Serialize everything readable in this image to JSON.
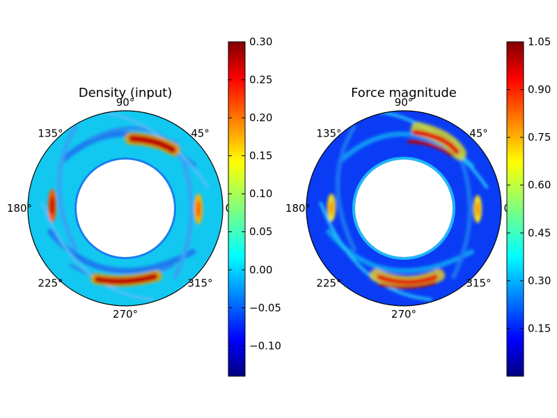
{
  "chart_data": [
    {
      "type": "heatmap",
      "title": "Density (input)",
      "projection": "polar",
      "angular_ticks": [
        "0°",
        "45°",
        "90°",
        "135°",
        "180°",
        "225°",
        "270°",
        "315°"
      ],
      "radial_range": [
        0.5,
        1.0
      ],
      "colormap": "jet",
      "colorbar": {
        "range": [
          -0.14,
          0.3
        ],
        "ticks": [
          -0.1,
          -0.05,
          0.0,
          0.05,
          0.1,
          0.15,
          0.2,
          0.25,
          0.3
        ],
        "tick_labels": [
          "−0.10",
          "−0.05",
          "0.00",
          "0.05",
          "0.10",
          "0.15",
          "0.20",
          "0.25",
          "0.30"
        ]
      },
      "features": [
        {
          "angle_deg": 62,
          "r": 0.84,
          "value": 0.29
        },
        {
          "angle_deg": 268,
          "r": 0.84,
          "value": 0.29
        },
        {
          "angle_deg": 180,
          "r": 0.94,
          "value": 0.22
        },
        {
          "angle_deg": 0,
          "r": 0.76,
          "value": 0.18
        }
      ]
    },
    {
      "type": "heatmap",
      "title": "Force magnitude",
      "projection": "polar",
      "angular_ticks": [
        "0°",
        "45°",
        "90°",
        "135°",
        "180°",
        "225°",
        "270°",
        "315°"
      ],
      "radial_range": [
        0.5,
        1.0
      ],
      "colormap": "jet",
      "colorbar": {
        "range": [
          0.0,
          1.05
        ],
        "ticks": [
          0.15,
          0.3,
          0.45,
          0.6,
          0.75,
          0.9,
          1.05
        ],
        "tick_labels": [
          "0.15",
          "0.30",
          "0.45",
          "0.60",
          "0.75",
          "0.90",
          "1.05"
        ]
      },
      "features": [
        {
          "angle_deg": 62,
          "r": 0.84,
          "value": 1.0
        },
        {
          "angle_deg": 268,
          "r": 0.84,
          "value": 1.0
        },
        {
          "angle_deg": 180,
          "r": 0.94,
          "value": 0.7
        },
        {
          "angle_deg": 0,
          "r": 0.76,
          "value": 0.6
        }
      ]
    }
  ]
}
